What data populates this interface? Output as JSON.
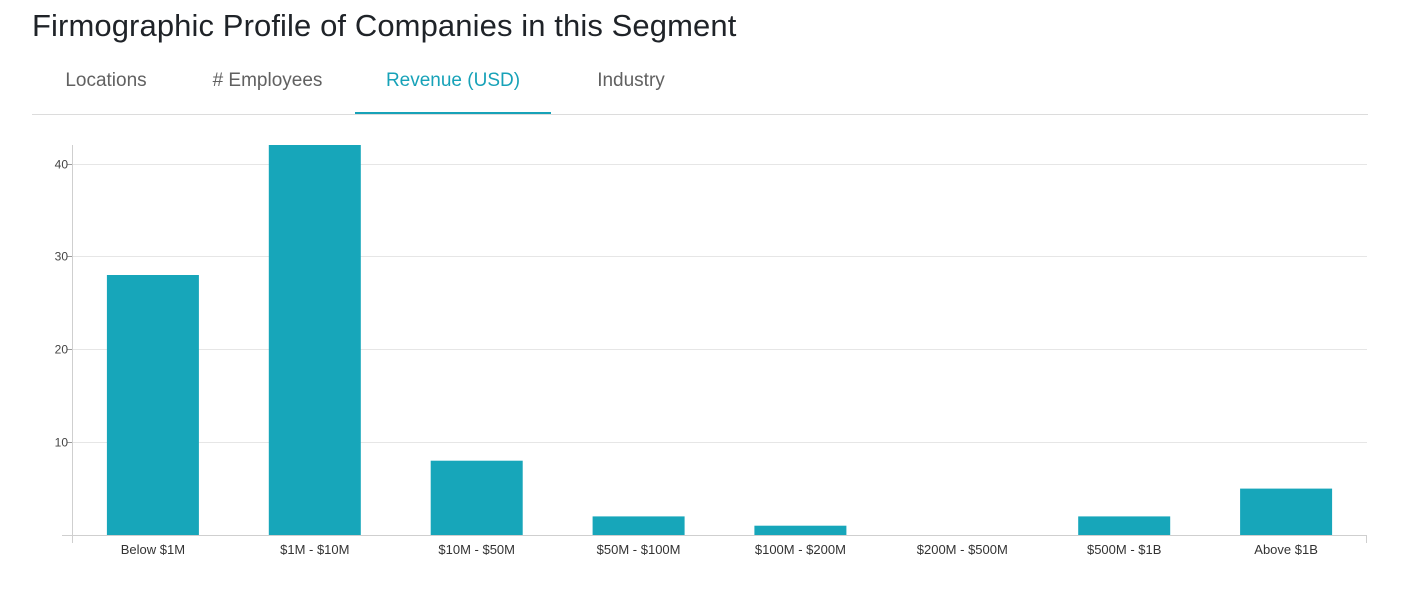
{
  "header": {
    "title": "Firmographic Profile of Companies in this Segment"
  },
  "tabs": [
    {
      "label": "Locations",
      "active": false
    },
    {
      "label": "# Employees",
      "active": false
    },
    {
      "label": "Revenue (USD)",
      "active": true
    },
    {
      "label": "Industry",
      "active": false
    }
  ],
  "colors": {
    "accent": "#17a2b8",
    "bar": "#17a6ba",
    "grid": "#e6e6e6",
    "tab_inactive": "#616161"
  },
  "chart_data": {
    "type": "bar",
    "categories": [
      "Below $1M",
      "$1M - $10M",
      "$10M - $50M",
      "$50M - $100M",
      "$100M - $200M",
      "$200M - $500M",
      "$500M - $1B",
      "Above $1B"
    ],
    "values": [
      28,
      42,
      8,
      2,
      1,
      0,
      2,
      5
    ],
    "ylim": [
      0,
      42
    ],
    "yticks": [
      10,
      20,
      30,
      40
    ],
    "grid": true,
    "legend": false
  }
}
